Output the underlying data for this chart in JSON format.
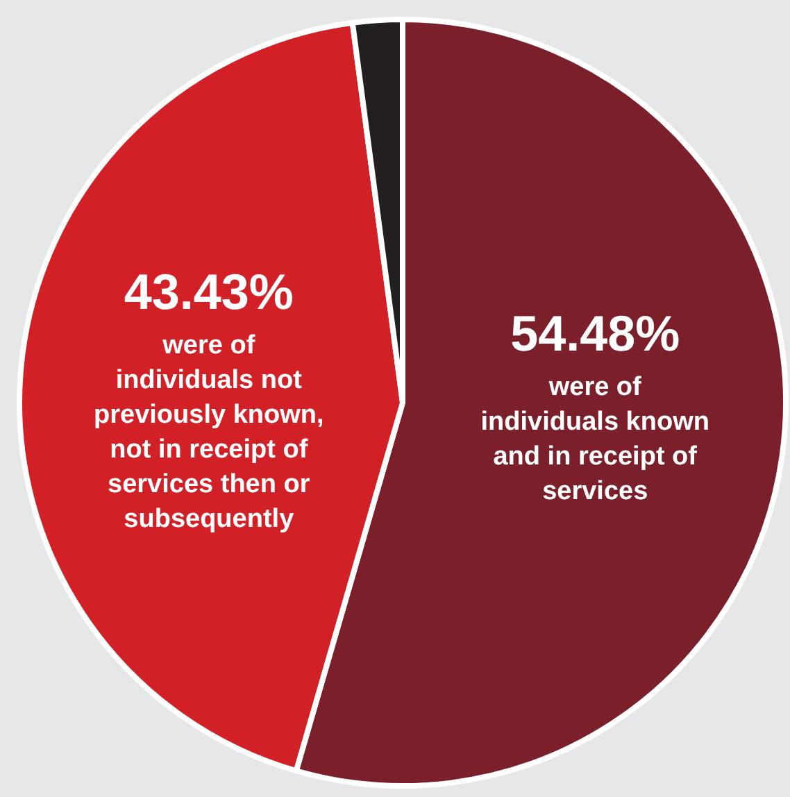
{
  "chart_data": {
    "type": "pie",
    "categories": [
      "were of individuals known and in receipt of services",
      "were of individuals not previously known, not in receipt of services then or subsequently",
      null
    ],
    "values": [
      54.48,
      43.43,
      2.09
    ],
    "colors": [
      "#7b1f2a",
      "#d22027",
      "#231f20"
    ],
    "value_labels": [
      "54.48%",
      "43.43%",
      null
    ],
    "legend": false
  }
}
